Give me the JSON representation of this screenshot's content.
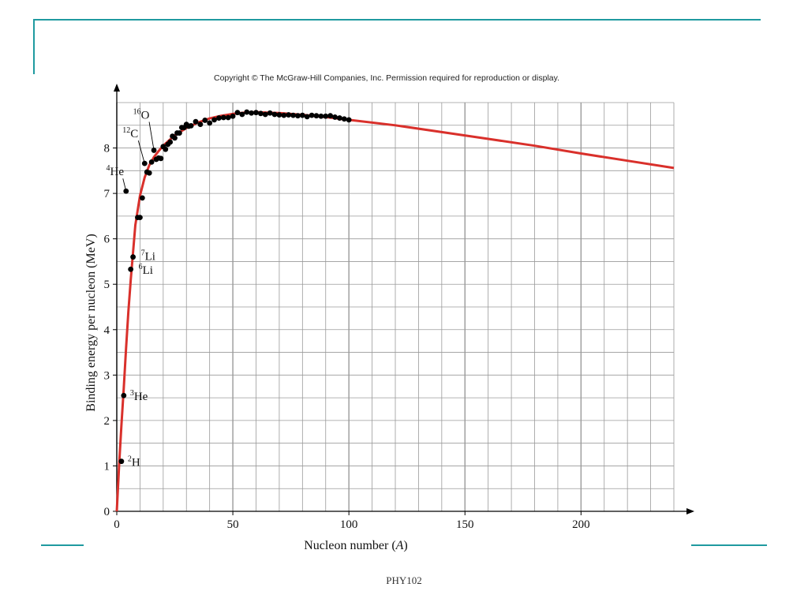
{
  "header": {
    "copyright": "Copyright © The McGraw-Hill Companies, Inc. Permission required for reproduction or display."
  },
  "footer": {
    "text": "PHY102"
  },
  "colors": {
    "accent": "#1f9aa0",
    "curve": "#d9302b",
    "points": "#000000",
    "grid": "#9a9a9a"
  },
  "chart_data": {
    "type": "scatter",
    "title": "",
    "xlabel": "Nucleon number (A)",
    "ylabel": "Binding energy per nucleon (MeV)",
    "xlim": [
      0,
      240
    ],
    "ylim": [
      0,
      9
    ],
    "x_ticks": [
      0,
      50,
      100,
      150,
      200
    ],
    "y_ticks": [
      0,
      1,
      2,
      3,
      4,
      5,
      6,
      7,
      8
    ],
    "grid": true,
    "series": [
      {
        "kind": "points",
        "x": [
          2,
          3,
          4,
          6,
          7,
          9,
          10,
          11,
          12,
          13,
          14,
          15,
          16,
          17,
          18,
          19,
          20,
          21,
          22,
          23,
          24,
          25,
          26,
          27,
          28,
          29,
          30,
          31,
          32,
          34,
          36,
          38,
          40,
          42,
          44,
          46,
          48,
          50,
          52,
          54,
          56,
          58,
          60,
          62,
          64,
          66,
          68,
          70,
          72,
          74,
          76,
          78,
          80,
          82,
          84,
          86,
          88,
          90,
          92,
          94,
          96,
          98,
          100
        ],
        "y": [
          1.1,
          2.55,
          7.05,
          5.33,
          5.6,
          6.47,
          6.47,
          6.9,
          7.66,
          7.47,
          7.45,
          7.69,
          7.95,
          7.75,
          7.78,
          7.77,
          8.03,
          7.97,
          8.08,
          8.13,
          8.26,
          8.22,
          8.33,
          8.33,
          8.45,
          8.45,
          8.52,
          8.48,
          8.49,
          8.58,
          8.52,
          8.61,
          8.55,
          8.62,
          8.66,
          8.67,
          8.67,
          8.7,
          8.78,
          8.74,
          8.79,
          8.77,
          8.78,
          8.76,
          8.74,
          8.77,
          8.74,
          8.73,
          8.72,
          8.73,
          8.72,
          8.71,
          8.72,
          8.69,
          8.72,
          8.71,
          8.7,
          8.7,
          8.71,
          8.68,
          8.66,
          8.64,
          8.62
        ]
      },
      {
        "kind": "curve",
        "x": [
          1,
          2,
          3,
          4,
          5,
          6,
          8,
          10,
          12,
          14,
          16,
          18,
          20,
          25,
          30,
          35,
          40,
          45,
          50,
          55,
          60,
          65,
          70,
          80,
          90,
          100,
          120,
          140,
          160,
          180,
          200,
          220,
          240
        ],
        "y": [
          1.0,
          1.9,
          2.7,
          3.6,
          4.4,
          5.1,
          6.3,
          6.95,
          7.35,
          7.62,
          7.8,
          7.93,
          8.05,
          8.28,
          8.44,
          8.56,
          8.65,
          8.71,
          8.75,
          8.78,
          8.79,
          8.78,
          8.77,
          8.73,
          8.68,
          8.62,
          8.5,
          8.35,
          8.2,
          8.05,
          7.88,
          7.72,
          7.56
        ]
      }
    ],
    "annotations": [
      {
        "sup": "2",
        "label": "H",
        "x": 2,
        "y": 1.1
      },
      {
        "sup": "3",
        "label": "He",
        "x": 3,
        "y": 2.55
      },
      {
        "sup": "6",
        "label": "Li",
        "x": 6,
        "y": 5.33
      },
      {
        "sup": "7",
        "label": "Li",
        "x": 7,
        "y": 5.6
      },
      {
        "sup": "4",
        "label": "He",
        "x": 4,
        "y": 7.05
      },
      {
        "sup": "12",
        "label": "C",
        "x": 12,
        "y": 7.66
      },
      {
        "sup": "16",
        "label": "O",
        "x": 16,
        "y": 7.95
      }
    ]
  }
}
